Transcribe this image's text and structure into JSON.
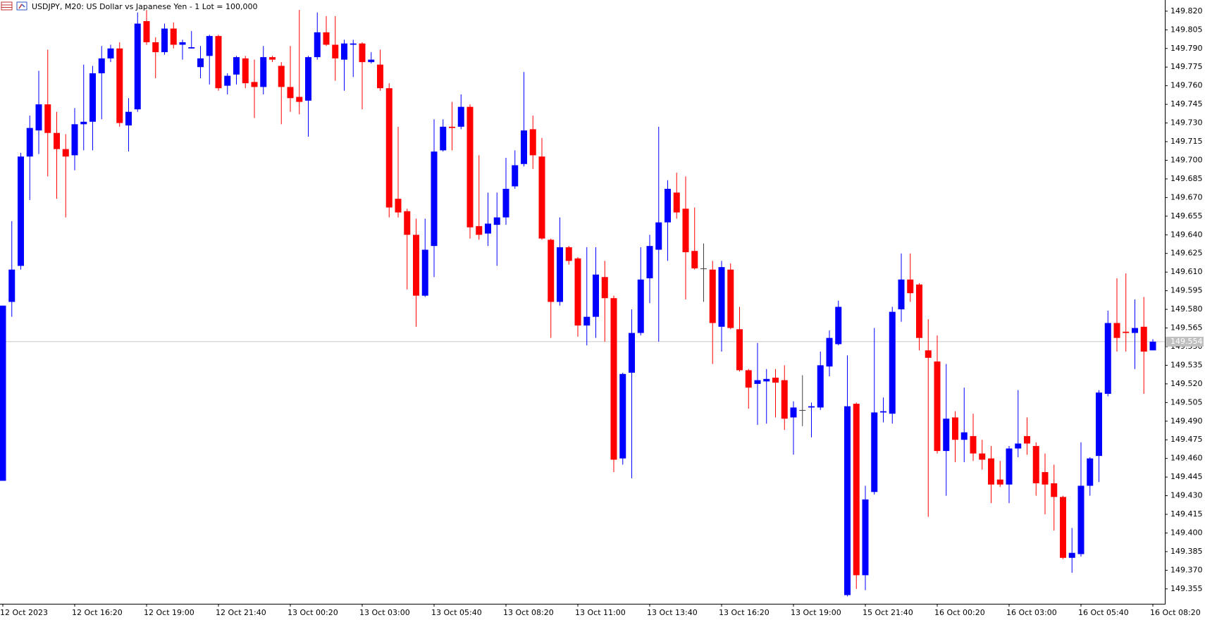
{
  "chart_data": {
    "type": "candlestick",
    "title": "USDJPY, M20:  US Dollar vs Japanese Yen - 1 Lot = 100,000",
    "up_color": "#0000ff",
    "down_color": "#ff0000",
    "neutral_color": "#404040",
    "categories": [
      "12 Oct 2023",
      null,
      null,
      null,
      null,
      null,
      null,
      null,
      "12 Oct 16:20",
      null,
      null,
      null,
      null,
      null,
      null,
      null,
      "12 Oct 19:00",
      null,
      null,
      null,
      null,
      null,
      null,
      null,
      "12 Oct 21:40",
      null,
      null,
      null,
      null,
      null,
      null,
      null,
      "13 Oct 00:20",
      null,
      null,
      null,
      null,
      null,
      null,
      null,
      "13 Oct 03:00",
      null,
      null,
      null,
      null,
      null,
      null,
      null,
      "13 Oct 05:40",
      null,
      null,
      null,
      null,
      null,
      null,
      null,
      "13 Oct 08:20",
      null,
      null,
      null,
      null,
      null,
      null,
      null,
      "13 Oct 11:00",
      null,
      null,
      null,
      null,
      null,
      null,
      null,
      "13 Oct 13:40",
      null,
      null,
      null,
      null,
      null,
      null,
      null,
      "13 Oct 16:20",
      null,
      null,
      null,
      null,
      null,
      null,
      null,
      "13 Oct 19:00",
      null,
      null,
      null,
      null,
      null,
      null,
      null,
      "15 Oct 21:40",
      null,
      null,
      null,
      null,
      null,
      null,
      null,
      "16 Oct 00:20",
      null,
      null,
      null,
      null,
      null,
      null,
      null,
      "16 Oct 03:00",
      null,
      null,
      null,
      null,
      null,
      null,
      null,
      "16 Oct 05:40",
      null,
      null,
      null,
      null,
      null,
      null,
      null,
      "16 Oct 08:20"
    ],
    "open": [
      149.442,
      149.586,
      149.615,
      149.703,
      149.724,
      149.745,
      149.722,
      149.709,
      149.704,
      149.729,
      149.731,
      149.77,
      149.782,
      149.79,
      149.728,
      149.741,
      149.812,
      149.795,
      149.787,
      149.806,
      149.793,
      149.79,
      149.775,
      149.784,
      149.8,
      149.76,
      149.769,
      149.782,
      149.763,
      149.759,
      149.783,
      149.776,
      149.759,
      149.751,
      149.748,
      149.783,
      149.803,
      149.793,
      149.781,
      149.793,
      149.794,
      149.779,
      149.777,
      149.758,
      149.669,
      149.659,
      149.64,
      149.591,
      149.631,
      149.708,
      149.727,
      149.727,
      149.743,
      149.647,
      149.641,
      149.648,
      149.654,
      149.679,
      149.697,
      149.725,
      149.703,
      149.636,
      149.586,
      149.63,
      149.621,
      149.567,
      149.574,
      149.606,
      149.589,
      149.46,
      149.529,
      149.561,
      149.605,
      149.628,
      149.65,
      149.674,
      149.661,
      149.627,
      149.613,
      149.612,
      149.566,
      149.612,
      149.564,
      149.531,
      149.52,
      149.522,
      149.525,
      149.523,
      149.493,
      149.499,
      149.501,
      149.501,
      149.534,
      149.552,
      149.35,
      149.504,
      149.366,
      149.433,
      149.497,
      149.496,
      149.58,
      149.604,
      149.6,
      149.547,
      149.538,
      149.466,
      149.493,
      149.475,
      149.478,
      149.464,
      149.46,
      149.443,
      149.439,
      149.468,
      149.478,
      149.47,
      149.449,
      149.44,
      149.429,
      149.38,
      149.383,
      149.438,
      149.462,
      149.512,
      149.569,
      149.562,
      149.561,
      149.566,
      149.547
    ],
    "high": [
      149.583,
      149.651,
      149.706,
      149.736,
      149.772,
      149.789,
      149.739,
      149.721,
      149.742,
      149.777,
      149.776,
      149.792,
      149.793,
      149.795,
      149.75,
      149.819,
      149.821,
      149.799,
      149.81,
      149.811,
      149.797,
      149.804,
      149.792,
      149.801,
      149.801,
      149.77,
      149.784,
      149.784,
      149.781,
      149.792,
      149.784,
      149.779,
      149.792,
      149.821,
      149.784,
      149.819,
      149.816,
      149.816,
      149.797,
      149.797,
      149.795,
      149.787,
      149.789,
      149.762,
      149.727,
      149.661,
      149.653,
      149.653,
      149.733,
      149.733,
      149.747,
      149.753,
      149.745,
      149.704,
      149.674,
      149.674,
      149.702,
      149.708,
      149.771,
      149.736,
      149.718,
      149.637,
      149.654,
      149.631,
      149.622,
      149.63,
      149.63,
      149.619,
      149.591,
      149.529,
      149.58,
      149.63,
      149.64,
      149.727,
      149.684,
      149.69,
      149.687,
      149.662,
      149.633,
      149.619,
      149.619,
      149.617,
      149.582,
      149.532,
      149.553,
      149.532,
      149.532,
      149.535,
      149.506,
      149.527,
      149.505,
      149.546,
      149.563,
      149.587,
      149.543,
      149.505,
      149.438,
      149.565,
      149.509,
      149.582,
      149.625,
      149.625,
      149.601,
      149.572,
      149.559,
      149.536,
      149.498,
      149.517,
      149.496,
      149.475,
      149.47,
      149.458,
      149.47,
      149.515,
      149.493,
      149.473,
      149.464,
      149.455,
      149.43,
      149.404,
      149.473,
      149.461,
      149.515,
      149.579,
      149.605,
      149.609,
      149.588,
      149.59,
      149.556
    ],
    "low": [
      149.442,
      149.574,
      149.612,
      149.668,
      149.705,
      149.687,
      149.669,
      149.654,
      149.692,
      149.708,
      149.708,
      149.733,
      149.779,
      149.727,
      149.707,
      149.739,
      149.793,
      149.766,
      149.785,
      149.79,
      149.781,
      149.79,
      149.766,
      149.761,
      149.756,
      149.753,
      149.761,
      149.758,
      149.734,
      149.753,
      149.779,
      149.729,
      149.739,
      149.737,
      149.719,
      149.781,
      149.792,
      149.764,
      149.756,
      149.767,
      149.741,
      149.778,
      149.756,
      149.654,
      149.654,
      149.596,
      149.566,
      149.59,
      149.606,
      149.707,
      149.708,
      149.725,
      149.637,
      149.636,
      149.631,
      149.615,
      149.648,
      149.677,
      149.695,
      149.693,
      149.636,
      149.557,
      149.583,
      149.616,
      149.558,
      149.551,
      149.557,
      149.554,
      149.449,
      149.455,
      149.444,
      149.559,
      149.585,
      149.554,
      149.619,
      149.653,
      149.588,
      149.612,
      149.586,
      149.536,
      149.546,
      149.564,
      149.53,
      149.5,
      149.487,
      149.488,
      149.493,
      149.483,
      149.463,
      149.486,
      149.477,
      149.499,
      149.526,
      149.551,
      149.349,
      149.355,
      149.354,
      149.431,
      149.489,
      149.488,
      149.57,
      149.586,
      149.547,
      149.413,
      149.464,
      149.43,
      149.457,
      149.457,
      149.458,
      149.451,
      149.424,
      149.437,
      149.424,
      149.461,
      149.463,
      149.43,
      149.415,
      149.402,
      149.379,
      149.368,
      149.381,
      149.43,
      149.441,
      149.51,
      149.546,
      149.546,
      149.532,
      149.512,
      149.547
    ],
    "close": [
      149.583,
      149.612,
      149.703,
      149.726,
      149.745,
      149.722,
      149.709,
      149.703,
      149.729,
      149.731,
      149.77,
      149.782,
      149.79,
      149.73,
      149.739,
      149.81,
      149.795,
      149.787,
      149.806,
      149.793,
      149.795,
      149.791,
      149.782,
      149.8,
      149.758,
      149.768,
      149.783,
      149.762,
      149.759,
      149.783,
      149.781,
      149.759,
      149.75,
      149.747,
      149.783,
      149.803,
      149.793,
      149.782,
      149.794,
      149.794,
      149.779,
      149.781,
      149.758,
      149.662,
      149.658,
      149.64,
      149.591,
      149.628,
      149.707,
      149.727,
      149.726,
      149.743,
      149.646,
      149.64,
      149.649,
      149.654,
      149.677,
      149.696,
      149.724,
      149.704,
      149.637,
      149.586,
      149.63,
      149.619,
      149.567,
      149.574,
      149.608,
      149.589,
      149.459,
      149.528,
      149.561,
      149.604,
      149.631,
      149.65,
      149.677,
      149.658,
      149.626,
      149.613,
      149.613,
      149.569,
      149.614,
      149.565,
      149.531,
      149.517,
      149.523,
      149.524,
      149.521,
      149.492,
      149.501,
      149.499,
      149.502,
      149.535,
      149.557,
      149.582,
      149.502,
      149.366,
      149.427,
      149.497,
      149.498,
      149.578,
      149.604,
      149.593,
      149.557,
      149.541,
      149.466,
      149.492,
      149.475,
      149.481,
      149.464,
      149.459,
      149.439,
      149.439,
      149.468,
      149.472,
      149.472,
      149.44,
      149.439,
      149.429,
      149.38,
      149.384,
      149.438,
      149.46,
      149.513,
      149.569,
      149.557,
      149.561,
      149.565,
      149.546,
      149.554
    ],
    "last_price": 149.554,
    "ylim": [
      149.343,
      149.829
    ],
    "yticks": [
      149.355,
      {
        "value": 149.37,
        "label": "149.370"
      },
      149.385,
      {
        "value": 149.4,
        "label": "149.400"
      },
      149.415,
      {
        "value": 149.43,
        "label": "149.430"
      },
      149.445,
      {
        "value": 149.46,
        "label": "149.460"
      },
      149.475,
      {
        "value": 149.49,
        "label": "149.490"
      },
      149.505,
      {
        "value": 149.52,
        "label": "149.520"
      },
      149.535,
      {
        "value": 149.55,
        "label": "149.550"
      },
      149.565,
      {
        "value": 149.58,
        "label": "149.580"
      },
      149.595,
      {
        "value": 149.61,
        "label": "149.610"
      },
      149.625,
      {
        "value": 149.64,
        "label": "149.640"
      },
      149.655,
      {
        "value": 149.67,
        "label": "149.670"
      },
      149.685,
      {
        "value": 149.7,
        "label": "149.700"
      },
      149.715,
      {
        "value": 149.73,
        "label": "149.730"
      },
      149.745,
      {
        "value": 149.76,
        "label": "149.760"
      },
      149.775,
      {
        "value": 149.79,
        "label": "149.790"
      },
      149.805,
      {
        "value": 149.82,
        "label": "149.820"
      }
    ],
    "grid": false
  }
}
